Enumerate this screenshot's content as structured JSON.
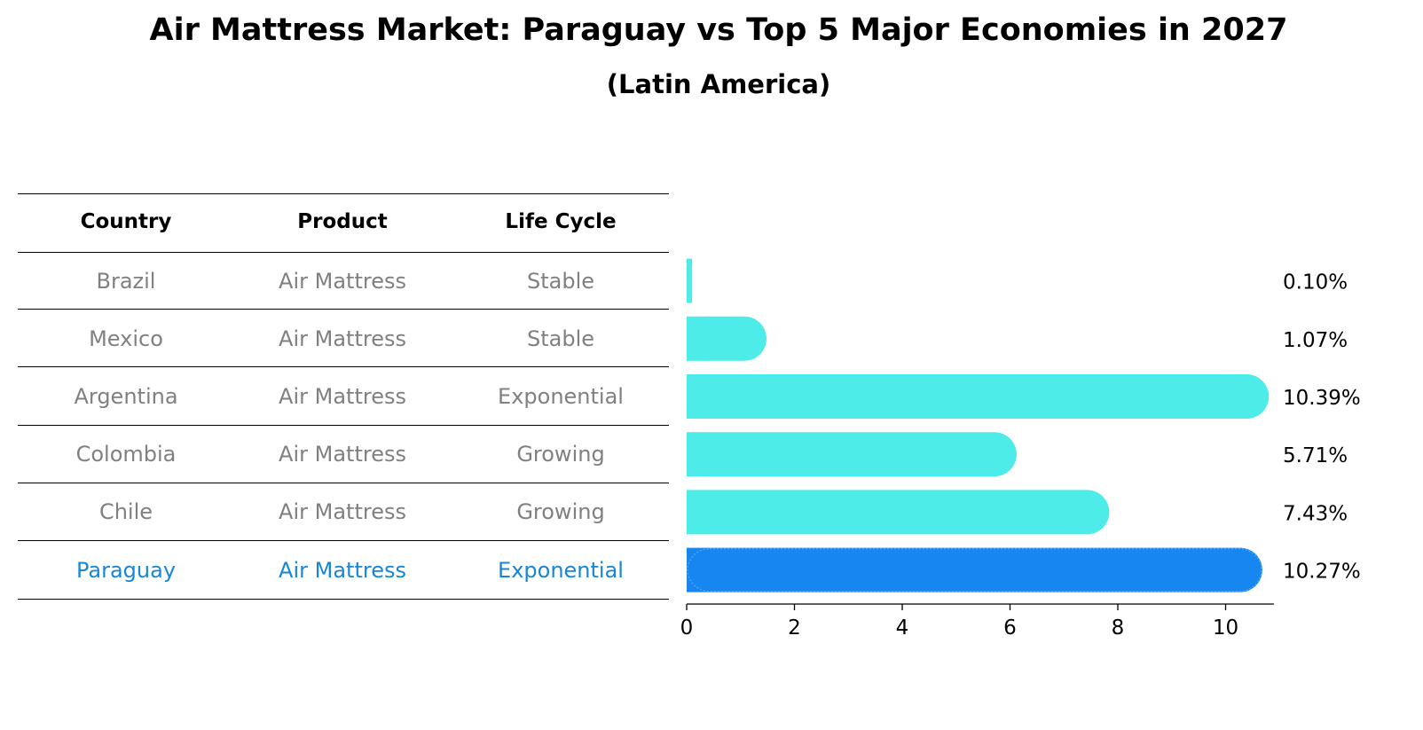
{
  "title": "Air Mattress Market: Paraguay vs Top 5 Major Economies in 2027",
  "subtitle": "(Latin America)",
  "colors": {
    "normal_bar": "#4dece8",
    "highlight_bar": "#1886f0",
    "muted_text": "#808080",
    "highlight_text": "#1886d6"
  },
  "table": {
    "headers": [
      "Country",
      "Product",
      "Life Cycle"
    ],
    "rows": [
      {
        "country": "Brazil",
        "product": "Air Mattress",
        "life_cycle": "Stable",
        "highlight": false
      },
      {
        "country": "Mexico",
        "product": "Air Mattress",
        "life_cycle": "Stable",
        "highlight": false
      },
      {
        "country": "Argentina",
        "product": "Air Mattress",
        "life_cycle": "Exponential",
        "highlight": false
      },
      {
        "country": "Colombia",
        "product": "Air Mattress",
        "life_cycle": "Growing",
        "highlight": false
      },
      {
        "country": "Chile",
        "product": "Air Mattress",
        "life_cycle": "Growing",
        "highlight": false
      },
      {
        "country": "Paraguay",
        "product": "Air Mattress",
        "life_cycle": "Exponential",
        "highlight": true
      }
    ]
  },
  "chart_data": {
    "type": "bar",
    "orientation": "horizontal",
    "categories": [
      "Brazil",
      "Mexico",
      "Argentina",
      "Colombia",
      "Chile",
      "Paraguay"
    ],
    "values": [
      0.1,
      1.07,
      10.39,
      5.71,
      7.43,
      10.27
    ],
    "value_labels": [
      "0.10%",
      "1.07%",
      "10.39%",
      "5.71%",
      "7.43%",
      "10.27%"
    ],
    "highlight_category": "Paraguay",
    "xlim": [
      0,
      10.9
    ],
    "xticks": [
      0,
      2,
      4,
      6,
      8,
      10
    ],
    "grid": false,
    "legend": "none"
  }
}
